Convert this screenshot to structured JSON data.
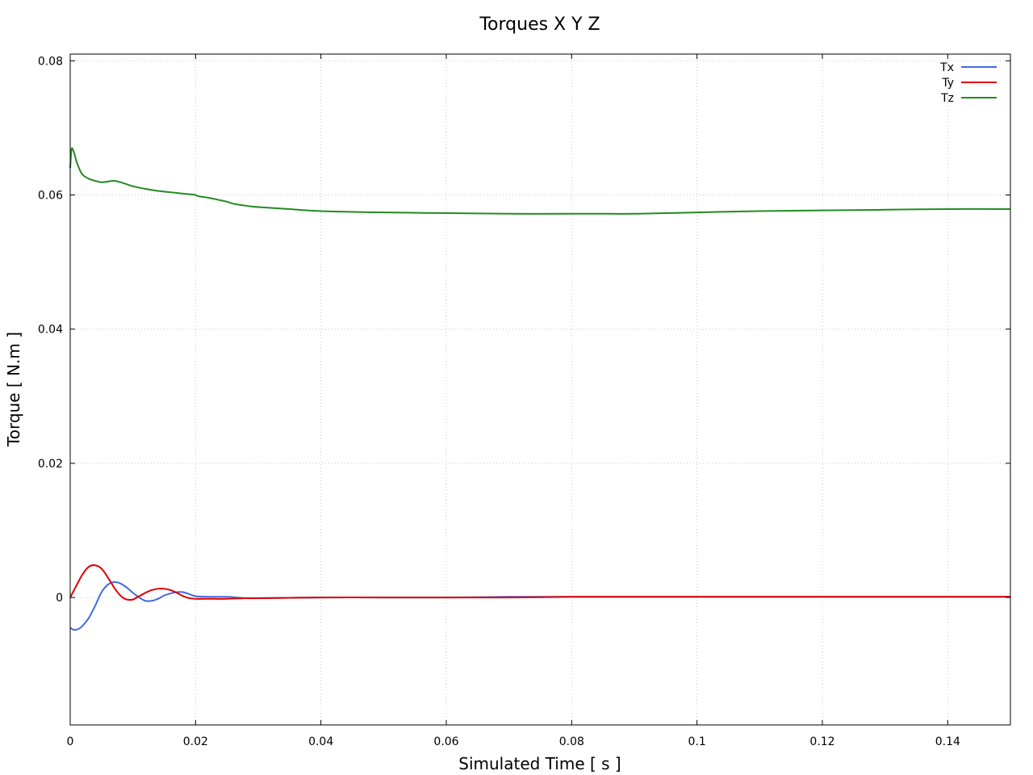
{
  "chart_data": {
    "type": "line",
    "title": "Torques X Y Z",
    "xlabel": "Simulated Time [ s ]",
    "ylabel": "Torque [ N.m ]",
    "xlim": [
      0,
      0.15
    ],
    "ylim": [
      -0.019,
      0.081
    ],
    "xticks": [
      0,
      0.02,
      0.04,
      0.06,
      0.08,
      0.1,
      0.12,
      0.14
    ],
    "xtick_labels": [
      "0",
      "0.02",
      "0.04",
      "0.06",
      "0.08",
      "0.1",
      "0.12",
      "0.14"
    ],
    "yticks": [
      0,
      0.02,
      0.04,
      0.06,
      0.08
    ],
    "ytick_labels": [
      "0",
      "0.02",
      "0.04",
      "0.06",
      "0.08"
    ],
    "grid": true,
    "legend_position": "top-right",
    "series": [
      {
        "name": "Tx",
        "color": "#4169e1",
        "x": [
          0,
          0.0005,
          0.001,
          0.0015,
          0.002,
          0.003,
          0.004,
          0.005,
          0.006,
          0.007,
          0.008,
          0.009,
          0.01,
          0.011,
          0.012,
          0.013,
          0.014,
          0.015,
          0.016,
          0.017,
          0.018,
          0.019,
          0.02,
          0.022,
          0.025,
          0.028,
          0.03,
          0.04,
          0.05,
          0.06,
          0.07,
          0.08,
          0.09,
          0.1,
          0.11,
          0.12,
          0.13,
          0.14,
          0.15
        ],
        "y": [
          -0.0045,
          -0.0048,
          -0.0048,
          -0.0046,
          -0.0042,
          -0.003,
          -0.0012,
          0.0008,
          0.0019,
          0.0023,
          0.0021,
          0.0015,
          0.0007,
          0.0,
          -0.0005,
          -0.0005,
          -0.0002,
          0.0003,
          0.0006,
          0.0008,
          0.0008,
          0.0005,
          0.0002,
          0.0001,
          0.0001,
          -0.0001,
          -0.0001,
          0.0,
          0.0,
          0.0,
          0.0001,
          0.0001,
          0.0001,
          0.0001,
          0.0001,
          0.0001,
          0.0001,
          0.0001,
          0.0001
        ]
      },
      {
        "name": "Ty",
        "color": "#e00000",
        "x": [
          0,
          0.001,
          0.002,
          0.003,
          0.004,
          0.005,
          0.006,
          0.007,
          0.008,
          0.009,
          0.01,
          0.011,
          0.012,
          0.013,
          0.014,
          0.015,
          0.016,
          0.017,
          0.018,
          0.019,
          0.02,
          0.022,
          0.025,
          0.028,
          0.03,
          0.04,
          0.05,
          0.06,
          0.07,
          0.08,
          0.09,
          0.1,
          0.11,
          0.12,
          0.13,
          0.14,
          0.15
        ],
        "y": [
          0.0,
          0.0018,
          0.0035,
          0.0046,
          0.0048,
          0.0043,
          0.003,
          0.0015,
          0.0003,
          -0.0003,
          -0.0003,
          0.0002,
          0.0007,
          0.0011,
          0.0013,
          0.0013,
          0.0011,
          0.0007,
          0.0002,
          -0.0001,
          -0.0002,
          -0.0002,
          -0.0002,
          -0.0001,
          -0.0001,
          0.0,
          0.0,
          0.0,
          0.0,
          0.0001,
          0.0001,
          0.0001,
          0.0001,
          0.0001,
          0.0001,
          0.0001,
          0.0001
        ]
      },
      {
        "name": "Tz",
        "color": "#228b22",
        "x": [
          0,
          0.0002,
          0.0005,
          0.0008,
          0.001,
          0.0015,
          0.002,
          0.003,
          0.004,
          0.005,
          0.006,
          0.007,
          0.008,
          0.009,
          0.01,
          0.012,
          0.014,
          0.016,
          0.018,
          0.019,
          0.02,
          0.0205,
          0.022,
          0.024,
          0.025,
          0.026,
          0.028,
          0.03,
          0.035,
          0.04,
          0.05,
          0.06,
          0.07,
          0.08,
          0.085,
          0.09,
          0.095,
          0.1,
          0.11,
          0.12,
          0.13,
          0.14,
          0.15
        ],
        "y": [
          0.064,
          0.0668,
          0.0666,
          0.0657,
          0.065,
          0.0638,
          0.063,
          0.0624,
          0.0621,
          0.0619,
          0.062,
          0.0621,
          0.0619,
          0.0616,
          0.0613,
          0.0609,
          0.0606,
          0.0604,
          0.0602,
          0.0601,
          0.06,
          0.0598,
          0.0596,
          0.0592,
          0.059,
          0.0587,
          0.0584,
          0.0582,
          0.0579,
          0.0576,
          0.0574,
          0.0573,
          0.0572,
          0.0572,
          0.0572,
          0.0572,
          0.0573,
          0.0574,
          0.0576,
          0.0577,
          0.0578,
          0.0579,
          0.0579
        ]
      }
    ]
  }
}
